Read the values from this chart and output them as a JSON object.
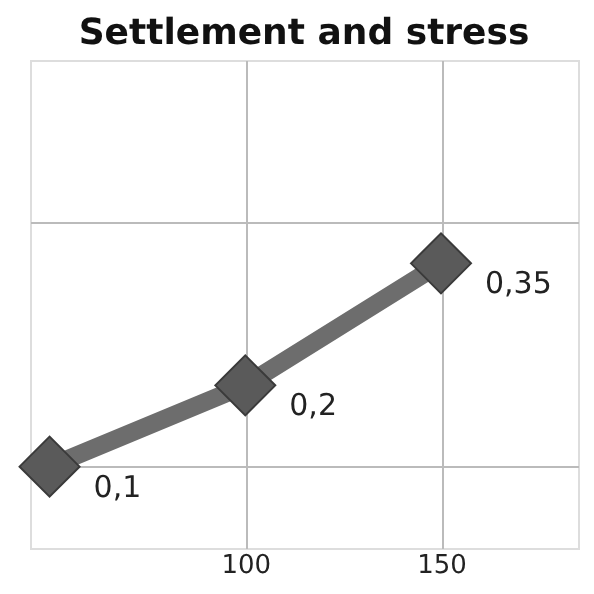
{
  "chart_data": {
    "type": "line",
    "title": "Settlement and stress",
    "x": [
      50,
      100,
      150
    ],
    "series": [
      {
        "color": "#6d6d6d",
        "values": [
          0.1,
          0.2,
          0.35
        ],
        "value_labels": [
          "0,1",
          "0,2",
          "0,35"
        ]
      }
    ],
    "xlim": [
      45,
      185
    ],
    "xticks": [
      100,
      150
    ],
    "ylim": [
      0,
      0.6
    ],
    "yticks": [
      {
        "value": 0.1,
        "label": null
      },
      {
        "value": 0.4,
        "label": null
      }
    ],
    "tick_labels": "x",
    "grid": true,
    "marker": "diamond",
    "line_style": "solid"
  }
}
